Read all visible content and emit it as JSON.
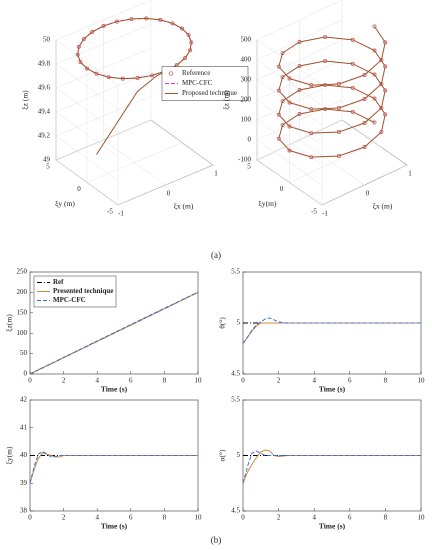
{
  "chart_data": [
    {
      "type": "line3d",
      "xlabel": "ξx (m)",
      "ylabel": "ξy (m)",
      "zlabel": "ξz (m)",
      "xlim": [
        -1,
        1
      ],
      "ylim": [
        -5,
        5
      ],
      "zlim": [
        49,
        50
      ],
      "xticks": [
        -1,
        0,
        1
      ],
      "yticks": [
        -5,
        0,
        5
      ],
      "zticks": [
        49,
        49.2,
        49.4,
        49.6,
        49.8,
        50
      ],
      "grid": true,
      "legend": "center right",
      "series": [
        {
          "name": "Reference",
          "color": "#c0504d",
          "style": "markers",
          "x": [
            1,
            0.97,
            0.87,
            0.71,
            0.5,
            0.26,
            0,
            -0.26,
            -0.5,
            -0.71,
            -0.87,
            -0.97,
            -1,
            -0.97,
            -0.87,
            -0.71,
            -0.5,
            -0.26,
            0,
            0.26,
            0.5,
            0.71,
            0.87,
            0.97
          ],
          "y": [
            0,
            1.29,
            2.5,
            3.54,
            4.33,
            4.83,
            5,
            4.83,
            4.33,
            3.54,
            2.5,
            1.29,
            0,
            -1.29,
            -2.5,
            -3.54,
            -4.33,
            -4.83,
            -5,
            -4.83,
            -4.33,
            -3.54,
            -2.5,
            -1.29
          ],
          "z": [
            49.95,
            49.95,
            49.95,
            49.95,
            49.95,
            49.95,
            49.95,
            49.95,
            49.95,
            49.95,
            49.95,
            49.95,
            49.95,
            49.95,
            49.95,
            49.95,
            49.95,
            49.95,
            49.95,
            49.95,
            49.95,
            49.95,
            49.95,
            49.95
          ]
        },
        {
          "name": "MPC-CFC",
          "color": "#e0409a",
          "style": "dashed",
          "closed": true,
          "x": [
            1,
            0.97,
            0.87,
            0.71,
            0.5,
            0.26,
            0,
            -0.26,
            -0.5,
            -0.71,
            -0.87,
            -0.97,
            -1,
            -0.97,
            -0.87,
            -0.71,
            -0.5,
            -0.26,
            0,
            0.26,
            0.5,
            0.71,
            0.87,
            0.97
          ],
          "y": [
            0,
            1.29,
            2.5,
            3.54,
            4.33,
            4.83,
            5,
            4.83,
            4.33,
            3.54,
            2.5,
            1.29,
            0,
            -1.29,
            -2.5,
            -3.54,
            -4.33,
            -4.83,
            -5,
            -4.83,
            -4.33,
            -3.54,
            -2.5,
            -1.29
          ],
          "z": [
            49.95,
            49.95,
            49.95,
            49.95,
            49.95,
            49.95,
            49.95,
            49.95,
            49.95,
            49.95,
            49.95,
            49.95,
            49.95,
            49.95,
            49.95,
            49.95,
            49.95,
            49.95,
            49.95,
            49.95,
            49.95,
            49.95,
            49.95,
            49.95
          ]
        },
        {
          "name": "Proposed technique",
          "color": "#a0522d",
          "style": "solid",
          "x": [
            -0.8,
            -0.5,
            -0.2,
            0,
            0.26,
            0.5,
            0.71,
            0.87,
            0.97,
            1,
            0.97,
            0.87,
            0.71,
            0.5,
            0.26,
            0,
            -0.26,
            -0.5,
            -0.71,
            -0.87,
            -0.97,
            -1,
            -0.97,
            -0.87,
            -0.71,
            -0.5,
            -0.26,
            0,
            0.26
          ],
          "y": [
            0,
            -1,
            -2,
            -3.5,
            -4.83,
            -4.33,
            -3.54,
            -2.5,
            -1.29,
            0,
            1.29,
            2.5,
            3.54,
            4.33,
            4.83,
            5,
            4.83,
            4.33,
            3.54,
            2.5,
            1.29,
            0,
            -1.29,
            -2.5,
            -3.54,
            -4.33,
            -4.83,
            -5,
            -4.83
          ],
          "z": [
            49.2,
            49.45,
            49.7,
            49.85,
            49.95,
            49.95,
            49.95,
            49.95,
            49.95,
            49.95,
            49.95,
            49.95,
            49.95,
            49.95,
            49.95,
            49.95,
            49.95,
            49.95,
            49.95,
            49.95,
            49.95,
            49.95,
            49.95,
            49.95,
            49.95,
            49.95,
            49.95,
            49.95,
            49.95
          ]
        }
      ]
    },
    {
      "type": "line3d",
      "xlabel": "ξx (m)",
      "ylabel": "ξy(m)",
      "zlabel": "ξz (m)",
      "xlim": [
        -1,
        1
      ],
      "ylim": [
        -5,
        5
      ],
      "zlim": [
        -100,
        500
      ],
      "xticks": [
        -1,
        0,
        1
      ],
      "yticks": [
        -5,
        0,
        5
      ],
      "zticks": [
        -100,
        0,
        100,
        200,
        300,
        400,
        500
      ],
      "grid": true,
      "series": [
        {
          "color": "#a0522d",
          "marker_color": "#c0504d",
          "style": "line-markers",
          "x": [
            1,
            0.87,
            0.5,
            0,
            -0.5,
            -0.87,
            -1,
            -0.87,
            -0.5,
            0,
            0.5,
            0.87,
            1,
            0.87,
            0.5,
            0,
            -0.5,
            -0.87,
            -1,
            -0.87,
            -0.5,
            0,
            0.5,
            0.87,
            1,
            0.87,
            0.5,
            0,
            -0.5,
            -0.87,
            -1,
            -0.87,
            -0.5,
            0,
            0.5,
            0.87,
            1,
            0.87,
            0.5,
            0,
            -0.5,
            -0.87,
            -1,
            -0.87,
            -0.5,
            0,
            0.5,
            0.87,
            1
          ],
          "y": [
            0,
            2.5,
            4.33,
            5,
            4.33,
            2.5,
            0,
            -2.5,
            -4.33,
            -5,
            -4.33,
            -2.5,
            0,
            2.5,
            4.33,
            5,
            4.33,
            2.5,
            0,
            -2.5,
            -4.33,
            -5,
            -4.33,
            -2.5,
            0,
            2.5,
            4.33,
            5,
            4.33,
            2.5,
            0,
            -2.5,
            -4.33,
            -5,
            -4.33,
            -2.5,
            0,
            2.5,
            4.33,
            5,
            4.33,
            2.5,
            0,
            -2.5,
            -4.33,
            -5,
            -4.33,
            -2.5,
            0
          ],
          "z": [
            0,
            10,
            20,
            30,
            40,
            50,
            60,
            70,
            80,
            90,
            100,
            110,
            120,
            130,
            140,
            150,
            160,
            170,
            180,
            190,
            200,
            210,
            220,
            230,
            240,
            250,
            260,
            270,
            280,
            290,
            300,
            310,
            320,
            330,
            340,
            350,
            360,
            370,
            380,
            390,
            400,
            410,
            420,
            430,
            440,
            450,
            460,
            470,
            480
          ]
        }
      ]
    },
    {
      "type": "line",
      "xlabel": "Time (s)",
      "ylabel": "ξz(m)",
      "xlim": [
        0,
        10
      ],
      "ylim": [
        0,
        250
      ],
      "xticks": [
        0,
        2,
        4,
        6,
        8,
        10
      ],
      "yticks": [
        0,
        50,
        100,
        150,
        200,
        250
      ],
      "grid": false,
      "legend": "upper left",
      "x": [
        0,
        2,
        4,
        6,
        8,
        10
      ],
      "series": [
        {
          "name": "Ref",
          "color": "#000000",
          "style": "dashdot",
          "values": [
            0,
            40,
            80,
            120,
            160,
            200
          ]
        },
        {
          "name": "Presented technique",
          "color": "#d08a3c",
          "style": "solid",
          "values": [
            0,
            40,
            80,
            120,
            160,
            200
          ]
        },
        {
          "name": "MPC-CFC",
          "color": "#3a6fd8",
          "style": "dashed",
          "values": [
            0,
            40.5,
            81,
            121,
            161,
            201
          ]
        }
      ]
    },
    {
      "type": "line",
      "xlabel": "Time (s)",
      "ylabel": "θ(°)",
      "xlim": [
        0,
        10
      ],
      "ylim": [
        4.5,
        5.5
      ],
      "xticks": [
        0,
        2,
        4,
        6,
        8,
        10
      ],
      "yticks": [
        4.5,
        5,
        5.5
      ],
      "grid": false,
      "x": [
        0,
        0.25,
        0.5,
        0.75,
        1,
        1.25,
        1.5,
        1.75,
        2,
        2.5,
        3,
        4,
        6,
        8,
        10
      ],
      "series": [
        {
          "color": "#000000",
          "style": "dashdot",
          "values": [
            5,
            5,
            5,
            5,
            5,
            5,
            5,
            5,
            5,
            5,
            5,
            5,
            5,
            5,
            5
          ]
        },
        {
          "color": "#d08a3c",
          "style": "solid",
          "values": [
            4.8,
            4.86,
            4.92,
            4.97,
            5,
            5,
            5,
            5,
            5,
            5,
            5,
            5,
            5,
            5,
            5
          ]
        },
        {
          "color": "#3a6fd8",
          "style": "dashed",
          "values": [
            4.8,
            4.86,
            4.93,
            4.98,
            5.01,
            5.04,
            5.05,
            5.03,
            5.01,
            5,
            5,
            5,
            5,
            5,
            5
          ]
        }
      ]
    },
    {
      "type": "line",
      "xlabel": "Time (s)",
      "ylabel": "ξy(m)",
      "xlim": [
        0,
        10
      ],
      "ylim": [
        38,
        42
      ],
      "xticks": [
        0,
        2,
        4,
        6,
        8,
        10
      ],
      "yticks": [
        38,
        39,
        40,
        41,
        42
      ],
      "grid": false,
      "x": [
        0,
        0.25,
        0.5,
        0.75,
        1,
        1.25,
        1.5,
        1.75,
        2,
        2.5,
        3,
        4,
        6,
        8,
        10
      ],
      "series": [
        {
          "color": "#000000",
          "style": "dashdot",
          "values": [
            40,
            40,
            40,
            40,
            40,
            40,
            40,
            40,
            40,
            40,
            40,
            40,
            40,
            40,
            40
          ]
        },
        {
          "color": "#d08a3c",
          "style": "solid",
          "values": [
            39,
            39.5,
            39.9,
            40.1,
            40.05,
            40,
            39.95,
            39.95,
            40,
            40,
            40,
            40,
            40,
            40,
            40
          ]
        },
        {
          "color": "#3a6fd8",
          "style": "dashed",
          "values": [
            39,
            39.6,
            40.05,
            40.15,
            40.05,
            39.95,
            39.95,
            40,
            40,
            40,
            40,
            40,
            40,
            40,
            40
          ]
        }
      ]
    },
    {
      "type": "line",
      "xlabel": "Time (s)",
      "ylabel": "α(°)",
      "xlim": [
        0,
        10
      ],
      "ylim": [
        4.5,
        5.5
      ],
      "xticks": [
        0,
        2,
        4,
        6,
        8,
        10
      ],
      "yticks": [
        4.5,
        5,
        5.5
      ],
      "grid": false,
      "x": [
        0,
        0.25,
        0.5,
        0.75,
        1,
        1.25,
        1.5,
        1.75,
        2,
        2.5,
        3,
        4,
        6,
        8,
        10
      ],
      "series": [
        {
          "color": "#000000",
          "style": "dashdot",
          "values": [
            5,
            5,
            5,
            5,
            5,
            5,
            5,
            5,
            5,
            5,
            5,
            5,
            5,
            5,
            5
          ]
        },
        {
          "color": "#d08a3c",
          "style": "solid",
          "values": [
            4.75,
            4.85,
            4.92,
            4.98,
            5.03,
            5.05,
            5.04,
            5,
            4.99,
            5,
            5,
            5,
            5,
            5,
            5
          ]
        },
        {
          "color": "#3a6fd8",
          "style": "dashed",
          "values": [
            4.75,
            4.9,
            5.02,
            5.04,
            5.02,
            5,
            5,
            5,
            5,
            5,
            5,
            5,
            5,
            5,
            5
          ]
        }
      ]
    }
  ],
  "captions": [
    "(a)",
    "(b)"
  ]
}
